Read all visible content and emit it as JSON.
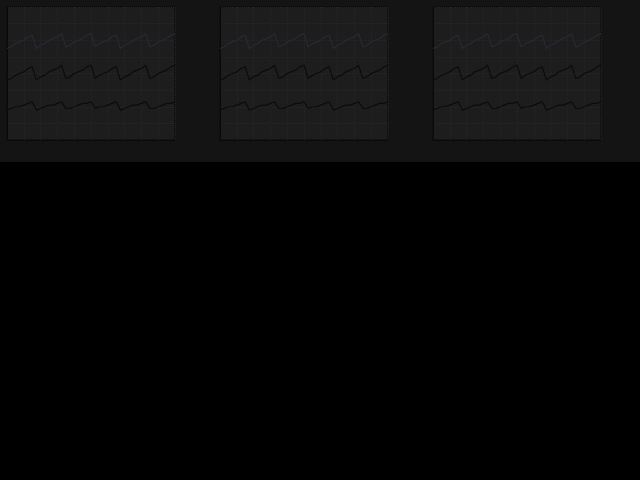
{
  "chart_data": [
    {
      "type": "line",
      "grid": true,
      "tick_labels": false,
      "xlim": [
        0,
        10
      ],
      "xticks": [
        0,
        1,
        2,
        3,
        4,
        5,
        6,
        7,
        8,
        9,
        10
      ],
      "ylim": [
        0,
        8
      ],
      "yticks": [
        0,
        1,
        2,
        3,
        4,
        5,
        6,
        7,
        8
      ],
      "x": [
        0,
        0.25,
        0.5,
        0.75,
        1,
        1.25,
        1.5,
        1.75,
        2,
        2.25,
        2.5,
        2.75,
        3,
        3.25,
        3.5,
        3.75,
        4,
        4.25,
        4.5,
        4.75,
        5,
        5.25,
        5.5,
        5.75,
        6,
        6.25,
        6.5,
        6.75,
        7,
        7.25,
        7.5,
        7.75,
        8,
        8.25,
        8.5,
        8.75,
        9,
        9.25,
        9.5,
        9.75,
        10
      ],
      "series": [
        {
          "color": "#2e2634",
          "values": [
            5.5,
            5.6,
            5.8,
            5.9,
            6.0,
            6.2,
            6.3,
            5.5,
            5.7,
            5.8,
            6.0,
            6.1,
            6.2,
            6.4,
            5.6,
            5.7,
            5.9,
            6.0,
            6.1,
            6.3,
            6.4,
            5.6,
            5.8,
            5.9,
            6.0,
            6.2,
            6.3,
            5.5,
            5.7,
            5.8,
            6.0,
            6.1,
            6.2,
            6.4,
            5.6,
            5.7,
            5.9,
            6.0,
            6.1,
            6.3,
            6.4
          ]
        },
        {
          "color": "#0c0c0c",
          "values": [
            3.6,
            3.7,
            3.9,
            4.0,
            4.1,
            4.3,
            4.4,
            3.6,
            3.8,
            3.9,
            4.1,
            4.2,
            4.3,
            4.5,
            3.7,
            3.8,
            4.0,
            4.1,
            4.2,
            4.4,
            4.5,
            3.7,
            3.9,
            4.0,
            4.1,
            4.3,
            4.4,
            3.6,
            3.8,
            3.9,
            4.1,
            4.2,
            4.3,
            4.5,
            3.7,
            3.8,
            4.0,
            4.1,
            4.2,
            4.4,
            4.5
          ]
        },
        {
          "color": "#0c0c0c",
          "values": [
            1.8,
            1.9,
            2.0,
            2.0,
            2.1,
            2.2,
            2.3,
            1.8,
            1.9,
            2.0,
            2.1,
            2.1,
            2.2,
            2.3,
            1.9,
            1.9,
            2.0,
            2.1,
            2.2,
            2.2,
            2.3,
            1.9,
            2.0,
            2.0,
            2.1,
            2.2,
            2.3,
            1.8,
            1.9,
            2.0,
            2.1,
            2.1,
            2.2,
            2.3,
            1.9,
            1.9,
            2.0,
            2.1,
            2.2,
            2.2,
            2.3
          ]
        }
      ]
    },
    {
      "type": "line",
      "grid": true,
      "tick_labels": false,
      "xlim": [
        0,
        10
      ],
      "xticks": [
        0,
        1,
        2,
        3,
        4,
        5,
        6,
        7,
        8,
        9,
        10
      ],
      "ylim": [
        0,
        8
      ],
      "yticks": [
        0,
        1,
        2,
        3,
        4,
        5,
        6,
        7,
        8
      ],
      "x": [
        0,
        0.25,
        0.5,
        0.75,
        1,
        1.25,
        1.5,
        1.75,
        2,
        2.25,
        2.5,
        2.75,
        3,
        3.25,
        3.5,
        3.75,
        4,
        4.25,
        4.5,
        4.75,
        5,
        5.25,
        5.5,
        5.75,
        6,
        6.25,
        6.5,
        6.75,
        7,
        7.25,
        7.5,
        7.75,
        8,
        8.25,
        8.5,
        8.75,
        9,
        9.25,
        9.5,
        9.75,
        10
      ],
      "series": [
        {
          "color": "#2e2634",
          "values": [
            5.5,
            5.6,
            5.8,
            5.9,
            6.0,
            6.2,
            6.3,
            5.5,
            5.7,
            5.8,
            6.0,
            6.1,
            6.2,
            6.4,
            5.6,
            5.7,
            5.9,
            6.0,
            6.1,
            6.3,
            6.4,
            5.6,
            5.8,
            5.9,
            6.0,
            6.2,
            6.3,
            5.5,
            5.7,
            5.8,
            6.0,
            6.1,
            6.2,
            6.4,
            5.6,
            5.7,
            5.9,
            6.0,
            6.1,
            6.3,
            6.4
          ]
        },
        {
          "color": "#0c0c0c",
          "values": [
            3.6,
            3.7,
            3.9,
            4.0,
            4.1,
            4.3,
            4.4,
            3.6,
            3.8,
            3.9,
            4.1,
            4.2,
            4.3,
            4.5,
            3.7,
            3.8,
            4.0,
            4.1,
            4.2,
            4.4,
            4.5,
            3.7,
            3.9,
            4.0,
            4.1,
            4.3,
            4.4,
            3.6,
            3.8,
            3.9,
            4.1,
            4.2,
            4.3,
            4.5,
            3.7,
            3.8,
            4.0,
            4.1,
            4.2,
            4.4,
            4.5
          ]
        },
        {
          "color": "#0c0c0c",
          "values": [
            1.8,
            1.9,
            2.0,
            2.0,
            2.1,
            2.2,
            2.3,
            1.8,
            1.9,
            2.0,
            2.1,
            2.1,
            2.2,
            2.3,
            1.9,
            1.9,
            2.0,
            2.1,
            2.2,
            2.2,
            2.3,
            1.9,
            2.0,
            2.0,
            2.1,
            2.2,
            2.3,
            1.8,
            1.9,
            2.0,
            2.1,
            2.1,
            2.2,
            2.3,
            1.9,
            1.9,
            2.0,
            2.1,
            2.2,
            2.2,
            2.3
          ]
        }
      ]
    },
    {
      "type": "line",
      "grid": true,
      "tick_labels": false,
      "xlim": [
        0,
        10
      ],
      "xticks": [
        0,
        1,
        2,
        3,
        4,
        5,
        6,
        7,
        8,
        9,
        10
      ],
      "ylim": [
        0,
        8
      ],
      "yticks": [
        0,
        1,
        2,
        3,
        4,
        5,
        6,
        7,
        8
      ],
      "x": [
        0,
        0.25,
        0.5,
        0.75,
        1,
        1.25,
        1.5,
        1.75,
        2,
        2.25,
        2.5,
        2.75,
        3,
        3.25,
        3.5,
        3.75,
        4,
        4.25,
        4.5,
        4.75,
        5,
        5.25,
        5.5,
        5.75,
        6,
        6.25,
        6.5,
        6.75,
        7,
        7.25,
        7.5,
        7.75,
        8,
        8.25,
        8.5,
        8.75,
        9,
        9.25,
        9.5,
        9.75,
        10
      ],
      "series": [
        {
          "color": "#2e2634",
          "values": [
            5.5,
            5.6,
            5.8,
            5.9,
            6.0,
            6.2,
            6.3,
            5.5,
            5.7,
            5.8,
            6.0,
            6.1,
            6.2,
            6.4,
            5.6,
            5.7,
            5.9,
            6.0,
            6.1,
            6.3,
            6.4,
            5.6,
            5.8,
            5.9,
            6.0,
            6.2,
            6.3,
            5.5,
            5.7,
            5.8,
            6.0,
            6.1,
            6.2,
            6.4,
            5.6,
            5.7,
            5.9,
            6.0,
            6.1,
            6.3,
            6.4
          ]
        },
        {
          "color": "#0c0c0c",
          "values": [
            3.6,
            3.7,
            3.9,
            4.0,
            4.1,
            4.3,
            4.4,
            3.6,
            3.8,
            3.9,
            4.1,
            4.2,
            4.3,
            4.5,
            3.7,
            3.8,
            4.0,
            4.1,
            4.2,
            4.4,
            4.5,
            3.7,
            3.9,
            4.0,
            4.1,
            4.3,
            4.4,
            3.6,
            3.8,
            3.9,
            4.1,
            4.2,
            4.3,
            4.5,
            3.7,
            3.8,
            4.0,
            4.1,
            4.2,
            4.4,
            4.5
          ]
        },
        {
          "color": "#0c0c0c",
          "values": [
            1.8,
            1.9,
            2.0,
            2.0,
            2.1,
            2.2,
            2.3,
            1.8,
            1.9,
            2.0,
            2.1,
            2.1,
            2.2,
            2.3,
            1.9,
            1.9,
            2.0,
            2.1,
            2.2,
            2.2,
            2.3,
            1.9,
            2.0,
            2.0,
            2.1,
            2.2,
            2.3,
            1.8,
            1.9,
            2.0,
            2.1,
            2.1,
            2.2,
            2.3,
            1.9,
            1.9,
            2.0,
            2.1,
            2.2,
            2.2,
            2.3
          ]
        }
      ]
    }
  ]
}
